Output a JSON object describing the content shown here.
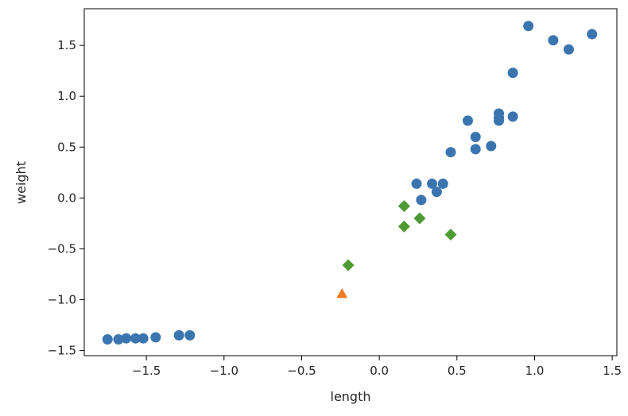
{
  "chart_data": {
    "type": "scatter",
    "title": "",
    "xlabel": "length",
    "ylabel": "weight",
    "xlim": [
      -1.9,
      1.53
    ],
    "ylim": [
      -1.55,
      1.86
    ],
    "x_ticks": [
      -1.5,
      -1.0,
      -0.5,
      0.0,
      0.5,
      1.0,
      1.5
    ],
    "x_tick_labels": [
      "−1.5",
      "−1.0",
      "−0.5",
      "0.0",
      "0.5",
      "1.0",
      "1.5"
    ],
    "y_ticks": [
      -1.5,
      -1.0,
      -0.5,
      0.0,
      0.5,
      1.0,
      1.5
    ],
    "y_tick_labels": [
      "−1.5",
      "−1.0",
      "−0.5",
      "0.0",
      "0.5",
      "1.0",
      "1.5"
    ],
    "grid": false,
    "legend": "none",
    "series": [
      {
        "marker": "circle",
        "color": "#3a75b0",
        "points": [
          [
            -1.75,
            -1.39
          ],
          [
            -1.68,
            -1.39
          ],
          [
            -1.63,
            -1.38
          ],
          [
            -1.57,
            -1.38
          ],
          [
            -1.52,
            -1.38
          ],
          [
            -1.44,
            -1.37
          ],
          [
            -1.29,
            -1.35
          ],
          [
            -1.22,
            -1.35
          ],
          [
            0.24,
            0.14
          ],
          [
            0.27,
            -0.02
          ],
          [
            0.34,
            0.14
          ],
          [
            0.37,
            0.06
          ],
          [
            0.41,
            0.14
          ],
          [
            0.46,
            0.45
          ],
          [
            0.57,
            0.76
          ],
          [
            0.62,
            0.6
          ],
          [
            0.62,
            0.48
          ],
          [
            0.72,
            0.51
          ],
          [
            0.77,
            0.83
          ],
          [
            0.77,
            0.79
          ],
          [
            0.77,
            0.76
          ],
          [
            0.86,
            0.8
          ],
          [
            0.86,
            1.23
          ],
          [
            0.96,
            1.69
          ],
          [
            1.12,
            1.55
          ],
          [
            1.22,
            1.46
          ],
          [
            1.37,
            1.61
          ]
        ]
      },
      {
        "marker": "diamond",
        "color": "#4e9a33",
        "points": [
          [
            -0.2,
            -0.66
          ],
          [
            0.16,
            -0.08
          ],
          [
            0.16,
            -0.28
          ],
          [
            0.26,
            -0.2
          ],
          [
            0.46,
            -0.36
          ]
        ]
      },
      {
        "marker": "triangle",
        "color": "#ef7d26",
        "points": [
          [
            -0.24,
            -0.94
          ]
        ]
      }
    ]
  }
}
